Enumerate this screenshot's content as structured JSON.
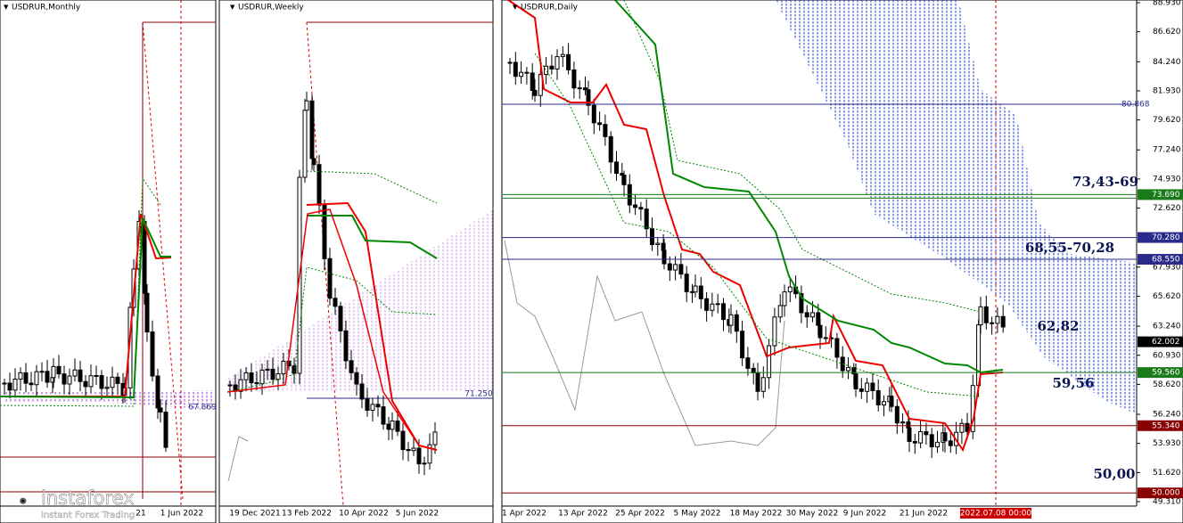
{
  "panels": [
    {
      "title": "USDRUR,Monthly",
      "dates": [
        "21",
        "1 Jun 2022"
      ],
      "levels": [
        "67.869"
      ]
    },
    {
      "title": "USDRUR,Weekly",
      "dates": [
        "19 Dec 2021",
        "13 Feb 2022",
        "10 Apr 2022",
        "5 Jun 2022"
      ],
      "levels": [
        "71.250"
      ]
    },
    {
      "title": "USDRUR,Daily",
      "dates": [
        "1 Apr 2022",
        "13 Apr 2022",
        "25 Apr 2022",
        "5 May 2022",
        "18 May 2022",
        "30 May 2022",
        "9 Jun 2022",
        "21 Jun 2022",
        "2022.07.08 00:00"
      ],
      "price_axis": [
        "88.930",
        "86.620",
        "84.240",
        "81.930",
        "79.620",
        "77.240",
        "74.930",
        "72.620",
        "67.930",
        "65.620",
        "63.240",
        "60.930",
        "58.620",
        "56.240",
        "53.930",
        "51.620",
        "49.310"
      ],
      "levels": [
        "80.868",
        "73.690",
        "70.280",
        "68.550",
        "62.002",
        "59.560",
        "55.340",
        "50.000"
      ],
      "annotations": [
        "73,43-69",
        "68,55-70,28",
        "62,82",
        "59,56",
        "50,00"
      ]
    }
  ],
  "logo": {
    "name": "instaforex",
    "tagline": "Instant Forex Trading"
  }
}
